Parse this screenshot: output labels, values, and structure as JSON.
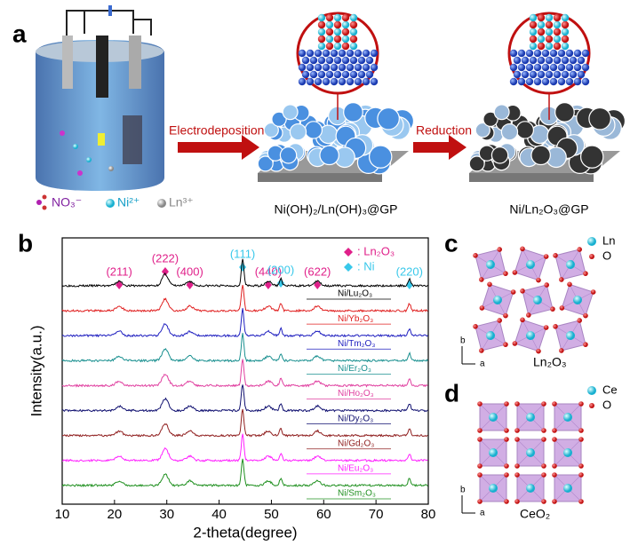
{
  "panel_a": {
    "label": "a",
    "legend": [
      "NO₃⁻",
      "Ni²⁺",
      "Ln³⁺"
    ],
    "steps": [
      "Electrodeposition",
      "Reduction"
    ],
    "products": [
      "Ni(OH)₂/Ln(OH)₃@GP",
      "Ni/Ln₂O₃@GP"
    ]
  },
  "chart_data": {
    "type": "line",
    "panel_label": "b",
    "x_label": "2-theta(degree)",
    "y_label": "Intensity(a.u.)",
    "xlim": [
      10,
      80
    ],
    "xticks": [
      10,
      20,
      30,
      40,
      50,
      60,
      70,
      80
    ],
    "legend": [
      {
        "name": ": Ln₂O₃",
        "color": "#e0208a"
      },
      {
        "name": ": Ni",
        "color": "#38c8ea"
      }
    ],
    "peaks": [
      {
        "label": "(211)",
        "x": 20.9,
        "phase": 0
      },
      {
        "label": "(222)",
        "x": 29.7,
        "phase": 0
      },
      {
        "label": "(400)",
        "x": 34.4,
        "phase": 0
      },
      {
        "label": "(111)",
        "x": 44.5,
        "phase": 1
      },
      {
        "label": "(440)",
        "x": 49.4,
        "phase": 0
      },
      {
        "label": "(200)",
        "x": 51.8,
        "phase": 1
      },
      {
        "label": "(622)",
        "x": 58.8,
        "phase": 0
      },
      {
        "label": "(220)",
        "x": 76.4,
        "phase": 1
      }
    ],
    "series": [
      {
        "name": "Ni/Lu₂O₃",
        "color": "#000000"
      },
      {
        "name": "Ni/Yb₂O₃",
        "color": "#e02020"
      },
      {
        "name": "Ni/Tm₂O₃",
        "color": "#2020c0"
      },
      {
        "name": "Ni/Er₂O₃",
        "color": "#1a9090"
      },
      {
        "name": "Ni/Ho₂O₃",
        "color": "#e040a0"
      },
      {
        "name": "Ni/Dy₂O₃",
        "color": "#101070"
      },
      {
        "name": "Ni/Gd₂O₃",
        "color": "#902020"
      },
      {
        "name": "Ni/Eu₂O₃",
        "color": "#ff20ff"
      },
      {
        "name": "Ni/Sm₂O₃",
        "color": "#209020"
      }
    ]
  },
  "panel_c": {
    "label": "c",
    "legend": [
      "Ln",
      "O"
    ],
    "axes": [
      "b",
      "a"
    ],
    "caption": "Ln₂O₃"
  },
  "panel_d": {
    "label": "d",
    "legend": [
      "Ce",
      "O"
    ],
    "axes": [
      "b",
      "a"
    ],
    "caption": "CeO₂"
  }
}
